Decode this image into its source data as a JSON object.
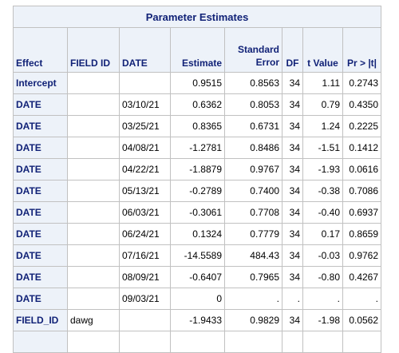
{
  "title": "Parameter Estimates",
  "columns": [
    "Effect",
    "FIELD ID",
    "DATE",
    "Estimate",
    "Standard Error",
    "DF",
    "t Value",
    "Pr > |t|"
  ],
  "rows": [
    {
      "effect": "Intercept",
      "field_id": "",
      "date": "",
      "estimate": "0.9515",
      "stderr": "0.8563",
      "df": "34",
      "tvalue": "1.11",
      "prob": "0.2743"
    },
    {
      "effect": "DATE",
      "field_id": "",
      "date": "03/10/21",
      "estimate": "0.6362",
      "stderr": "0.8053",
      "df": "34",
      "tvalue": "0.79",
      "prob": "0.4350"
    },
    {
      "effect": "DATE",
      "field_id": "",
      "date": "03/25/21",
      "estimate": "0.8365",
      "stderr": "0.6731",
      "df": "34",
      "tvalue": "1.24",
      "prob": "0.2225"
    },
    {
      "effect": "DATE",
      "field_id": "",
      "date": "04/08/21",
      "estimate": "-1.2781",
      "stderr": "0.8486",
      "df": "34",
      "tvalue": "-1.51",
      "prob": "0.1412"
    },
    {
      "effect": "DATE",
      "field_id": "",
      "date": "04/22/21",
      "estimate": "-1.8879",
      "stderr": "0.9767",
      "df": "34",
      "tvalue": "-1.93",
      "prob": "0.0616"
    },
    {
      "effect": "DATE",
      "field_id": "",
      "date": "05/13/21",
      "estimate": "-0.2789",
      "stderr": "0.7400",
      "df": "34",
      "tvalue": "-0.38",
      "prob": "0.7086"
    },
    {
      "effect": "DATE",
      "field_id": "",
      "date": "06/03/21",
      "estimate": "-0.3061",
      "stderr": "0.7708",
      "df": "34",
      "tvalue": "-0.40",
      "prob": "0.6937"
    },
    {
      "effect": "DATE",
      "field_id": "",
      "date": "06/24/21",
      "estimate": "0.1324",
      "stderr": "0.7779",
      "df": "34",
      "tvalue": "0.17",
      "prob": "0.8659"
    },
    {
      "effect": "DATE",
      "field_id": "",
      "date": "07/16/21",
      "estimate": "-14.5589",
      "stderr": "484.43",
      "df": "34",
      "tvalue": "-0.03",
      "prob": "0.9762"
    },
    {
      "effect": "DATE",
      "field_id": "",
      "date": "08/09/21",
      "estimate": "-0.6407",
      "stderr": "0.7965",
      "df": "34",
      "tvalue": "-0.80",
      "prob": "0.4267"
    },
    {
      "effect": "DATE",
      "field_id": "",
      "date": "09/03/21",
      "estimate": "0",
      "stderr": ".",
      "df": ".",
      "tvalue": ".",
      "prob": "."
    },
    {
      "effect": "FIELD_ID",
      "field_id": "dawg",
      "date": "",
      "estimate": "-1.9433",
      "stderr": "0.9829",
      "df": "34",
      "tvalue": "-1.98",
      "prob": "0.0562"
    },
    {
      "effect": "",
      "field_id": "",
      "date": "",
      "estimate": "",
      "stderr": "",
      "df": "",
      "tvalue": "",
      "prob": ""
    }
  ]
}
